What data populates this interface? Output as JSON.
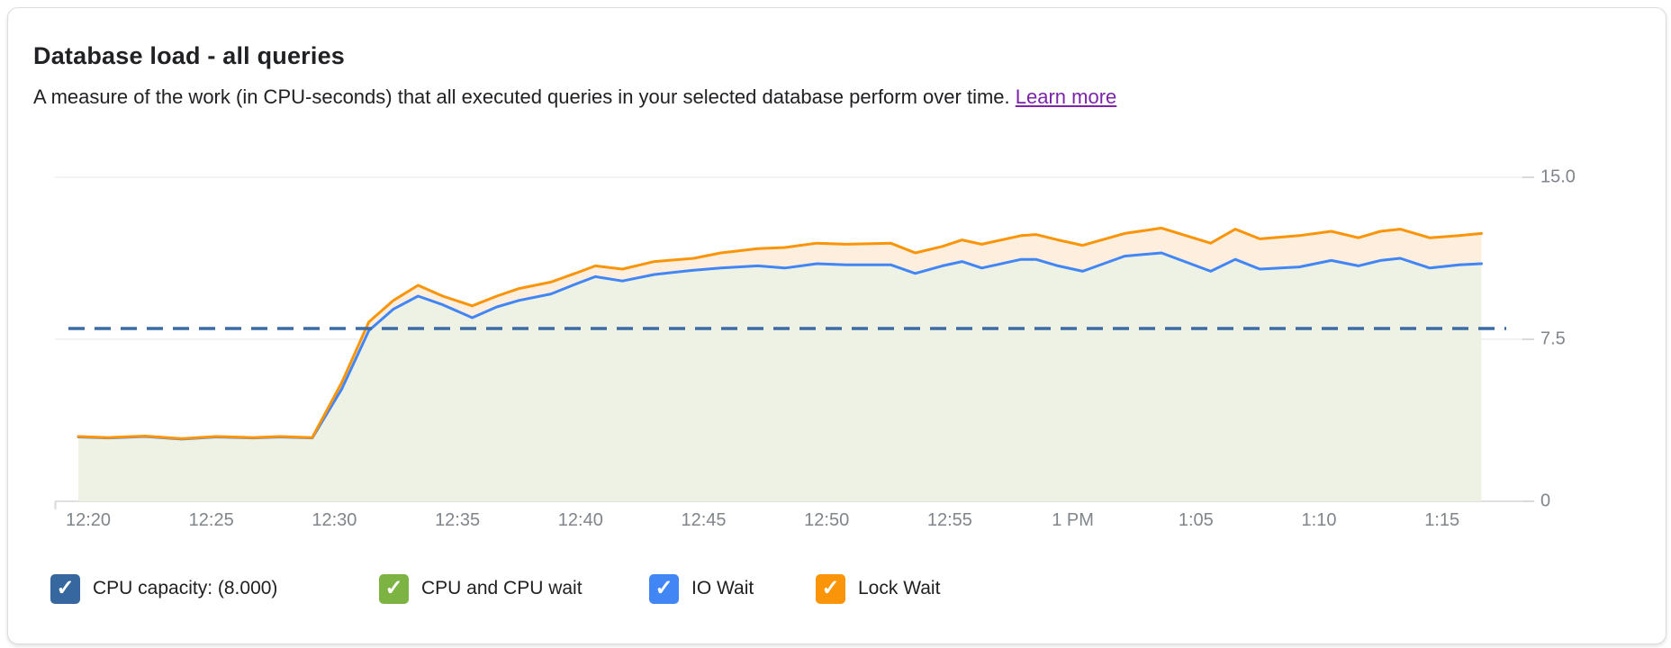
{
  "card": {
    "title": "Database load - all queries",
    "subtitle": "A measure of the work (in CPU-seconds) that all executed queries in your selected database perform over time.",
    "learn_more": "Learn more"
  },
  "chart_data": {
    "type": "area",
    "stacked": true,
    "title": "Database load - all queries",
    "ylabel": "CPU-seconds",
    "ylim": [
      0,
      15
    ],
    "grid": "horizontal",
    "legend_position": "bottom",
    "y_ticks": [
      {
        "v": 15,
        "label": "15.0"
      },
      {
        "v": 7.5,
        "label": "7.5"
      },
      {
        "v": 0,
        "label": "0"
      }
    ],
    "x_ticks": [
      {
        "t": 0,
        "label": "12:20"
      },
      {
        "t": 5,
        "label": "12:25"
      },
      {
        "t": 10,
        "label": "12:30"
      },
      {
        "t": 15,
        "label": "12:35"
      },
      {
        "t": 20,
        "label": "12:40"
      },
      {
        "t": 25,
        "label": "12:45"
      },
      {
        "t": 30,
        "label": "12:50"
      },
      {
        "t": 35,
        "label": "12:55"
      },
      {
        "t": 40,
        "label": "1 PM"
      },
      {
        "t": 45,
        "label": "1:05"
      },
      {
        "t": 50,
        "label": "1:10"
      },
      {
        "t": 55,
        "label": "1:15"
      }
    ],
    "capacity": {
      "display": "CPU capacity: (8.000)",
      "value": 8.0,
      "style": "dashed",
      "color": "#3c6ba5"
    },
    "t_minutes_after_12_20": [
      -0.4,
      0.8,
      2.3,
      3.8,
      5.2,
      6.7,
      7.8,
      9.1,
      10.3,
      11.4,
      12.4,
      13.4,
      14.4,
      15.6,
      16.6,
      17.5,
      18.8,
      19.9,
      20.6,
      21.7,
      23.0,
      24.6,
      25.7,
      27.2,
      28.3,
      29.6,
      30.8,
      32.6,
      33.6,
      34.7,
      35.5,
      36.3,
      37.9,
      38.5,
      39.4,
      40.4,
      42.1,
      43.6,
      45.6,
      46.6,
      47.6,
      49.2,
      50.5,
      51.6,
      52.5,
      53.3,
      54.5,
      55.7,
      56.6
    ],
    "series": [
      {
        "name": "CPU and CPU wait",
        "type": "area",
        "color": "#7cb342",
        "fill": "#edf2e4",
        "note": "green area bounded above by IO Wait cumulative line"
      },
      {
        "name": "IO Wait",
        "type": "line",
        "color": "#4285f4",
        "values": [
          2.98,
          2.93,
          3.0,
          2.88,
          2.98,
          2.93,
          2.98,
          2.93,
          5.2,
          7.9,
          8.9,
          9.5,
          9.1,
          8.5,
          9.0,
          9.3,
          9.6,
          10.1,
          10.4,
          10.2,
          10.5,
          10.7,
          10.8,
          10.9,
          10.8,
          11.0,
          10.95,
          10.95,
          10.55,
          10.9,
          11.1,
          10.8,
          11.2,
          11.2,
          10.9,
          10.65,
          11.35,
          11.5,
          10.65,
          11.2,
          10.75,
          10.85,
          11.15,
          10.9,
          11.15,
          11.25,
          10.8,
          10.95,
          11.0
        ]
      },
      {
        "name": "Lock Wait",
        "type": "line",
        "color": "#fa9408",
        "fill": "#fdeedd",
        "values": [
          3.0,
          2.95,
          3.02,
          2.9,
          3.0,
          2.95,
          3.0,
          2.95,
          5.5,
          8.3,
          9.3,
          10.0,
          9.5,
          9.05,
          9.5,
          9.85,
          10.15,
          10.6,
          10.9,
          10.75,
          11.1,
          11.25,
          11.5,
          11.7,
          11.75,
          11.95,
          11.9,
          11.95,
          11.5,
          11.8,
          12.1,
          11.9,
          12.3,
          12.35,
          12.1,
          11.85,
          12.4,
          12.65,
          11.95,
          12.6,
          12.15,
          12.3,
          12.5,
          12.2,
          12.5,
          12.6,
          12.2,
          12.3,
          12.4
        ]
      }
    ]
  },
  "legend": [
    {
      "label": "CPU capacity: (8.000)",
      "color": "#36679e",
      "checked": true
    },
    {
      "label": "CPU and CPU wait",
      "color": "#7cb342",
      "checked": true
    },
    {
      "label": "IO Wait",
      "color": "#4285f4",
      "checked": true
    },
    {
      "label": "Lock Wait",
      "color": "#fa9408",
      "checked": true
    }
  ]
}
